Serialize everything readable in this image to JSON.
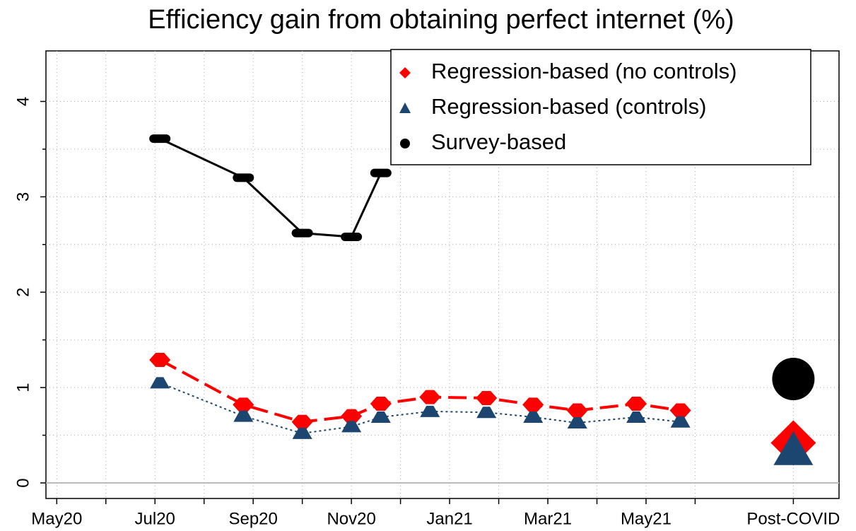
{
  "chart_data": {
    "type": "line",
    "title": "Efficiency gain from obtaining perfect internet (%)",
    "xlim": [
      -0.22,
      15.93
    ],
    "xticks": [
      {
        "value": 0,
        "label": "May20"
      },
      {
        "value": 2,
        "label": "Jul20"
      },
      {
        "value": 4,
        "label": "Sep20"
      },
      {
        "value": 6,
        "label": "Nov20"
      },
      {
        "value": 8,
        "label": "Jan21"
      },
      {
        "value": 10,
        "label": "Mar21"
      },
      {
        "value": 12,
        "label": "May21"
      },
      {
        "value": 15,
        "label": "Post-COVID"
      }
    ],
    "xminor_ticks": [
      1,
      3,
      5,
      7,
      9,
      11,
      13
    ],
    "ylim": [
      -0.163,
      4.53
    ],
    "yticks": [
      0,
      1,
      2,
      3,
      4
    ],
    "grid": true,
    "legend": "upper right",
    "series": [
      {
        "name": "Regression-based (no controls)",
        "color": "#ff0000",
        "marker": "diamond",
        "line": "dashed",
        "x": [
          2.1,
          3.8,
          5.0,
          6.0,
          6.6,
          7.6,
          8.75,
          9.7,
          10.6,
          11.8,
          12.7
        ],
        "values": [
          1.29,
          0.82,
          0.64,
          0.7,
          0.83,
          0.9,
          0.89,
          0.82,
          0.76,
          0.83,
          0.76
        ],
        "post_covid": 0.42
      },
      {
        "name": "Regression-based (controls)",
        "color": "#1c4670",
        "marker": "triangle",
        "line": "dotted",
        "x": [
          2.1,
          3.8,
          5.0,
          6.0,
          6.6,
          7.6,
          8.75,
          9.7,
          10.6,
          11.8,
          12.7
        ],
        "values": [
          1.05,
          0.7,
          0.52,
          0.59,
          0.69,
          0.75,
          0.74,
          0.69,
          0.63,
          0.69,
          0.64
        ],
        "post_covid": 0.35
      },
      {
        "name": "Survey-based",
        "color": "#000000",
        "marker": "circle",
        "line": "solid",
        "x": [
          2.1,
          3.8,
          5.0,
          6.0,
          6.6
        ],
        "values": [
          3.61,
          3.2,
          2.62,
          2.58,
          3.25
        ],
        "post_covid": 1.09
      }
    ]
  }
}
